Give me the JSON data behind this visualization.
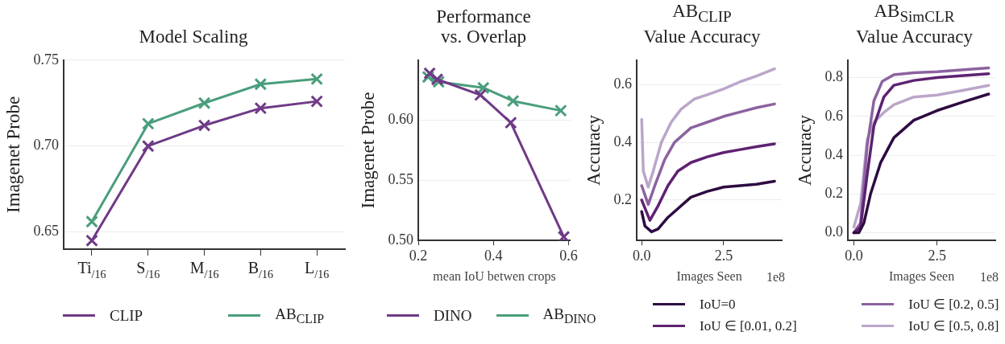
{
  "chart_data": [
    {
      "type": "line",
      "title": "Model Scaling",
      "ylabel": "Imagenet Probe",
      "categories": [
        "Ti$_{/16}$",
        "S$_{/16}$",
        "M$_{/16}$",
        "B$_{/16}$",
        "L$_{/16}$"
      ],
      "ylim": [
        0.64,
        0.75
      ],
      "yticks": [
        {
          "value": 0.65,
          "label": "0.65"
        },
        {
          "value": 0.7,
          "label": "0.70"
        },
        {
          "value": 0.75,
          "label": "0.75"
        }
      ],
      "grid": "y",
      "marker": "cross",
      "legend": "bottom",
      "series": [
        {
          "name": "CLIP",
          "color": "#6f3a86",
          "values": [
            0.645,
            0.7,
            0.712,
            0.722,
            0.726
          ]
        },
        {
          "name": "AB$_{CLIP}$",
          "color": "#4a9e7c",
          "values": [
            0.656,
            0.713,
            0.725,
            0.736,
            0.739
          ]
        }
      ]
    },
    {
      "type": "line",
      "title": "Performance\nvs. Overlap",
      "ylabel": "Imagenet Probe",
      "xlabel": "mean IoU betwen crops",
      "xlim": [
        0.2,
        0.605
      ],
      "xticks": [
        0.2,
        0.4,
        0.6
      ],
      "ylim": [
        0.5,
        0.65
      ],
      "yticks": [
        {
          "value": 0.5,
          "label": "0.50"
        },
        {
          "value": 0.55,
          "label": "0.55"
        },
        {
          "value": 0.6,
          "label": "0.60"
        }
      ],
      "grid": "y",
      "marker": "cross",
      "legend": "bottom",
      "series": [
        {
          "name": "DINO",
          "color": "#6f3a86",
          "x": [
            0.23,
            0.25,
            0.365,
            0.446,
            0.587
          ],
          "values": [
            0.639,
            0.634,
            0.621,
            0.598,
            0.503
          ]
        },
        {
          "name": "AB$_{DINO}$",
          "color": "#4a9e7c",
          "x": [
            0.226,
            0.254,
            0.373,
            0.452,
            0.579
          ],
          "values": [
            0.636,
            0.632,
            0.627,
            0.616,
            0.608
          ]
        }
      ]
    },
    {
      "type": "line",
      "title": "AB$_{CLIP}$\nValue Accuracy",
      "ylabel": "Accuracy",
      "xlabel": "Images Seen",
      "annotations": [
        "1e8"
      ],
      "xlim": [
        -0.15,
        4.27
      ],
      "xticks": [
        {
          "value": 0,
          "label": "0.0"
        },
        2.5
      ],
      "ylim": [
        0.06,
        0.685
      ],
      "yticks": [
        0.2,
        0.4,
        0.6
      ],
      "grid": "y",
      "marker": "none",
      "legend": "bottom",
      "series": [
        {
          "name": "IoU=0",
          "color": "#2e0b42",
          "x": [
            0,
            0.1,
            0.3,
            0.5,
            0.8,
            1.1,
            1.5,
            2.0,
            2.5,
            3.0,
            3.5,
            4.05
          ],
          "values": [
            0.16,
            0.11,
            0.09,
            0.1,
            0.14,
            0.17,
            0.21,
            0.23,
            0.245,
            0.25,
            0.255,
            0.265
          ]
        },
        {
          "name": "IoU ∈ [0.01, 0.2]",
          "color": "#5e2272",
          "x": [
            0,
            0.25,
            0.5,
            0.8,
            1.1,
            1.5,
            2.0,
            2.5,
            3.0,
            3.5,
            4.05
          ],
          "values": [
            0.2,
            0.13,
            0.18,
            0.25,
            0.3,
            0.33,
            0.35,
            0.365,
            0.375,
            0.385,
            0.395
          ]
        },
        {
          "name": "IoU ∈ [0.2, 0.5]",
          "color": "#8c62a0",
          "x": [
            0,
            0.2,
            0.4,
            0.7,
            1.0,
            1.5,
            2.0,
            2.5,
            3.0,
            3.5,
            4.05
          ],
          "values": [
            0.25,
            0.185,
            0.25,
            0.34,
            0.4,
            0.45,
            0.47,
            0.49,
            0.505,
            0.52,
            0.533
          ]
        },
        {
          "name": "IoU ∈ [0.5, 0.8]",
          "color": "#bba6ca",
          "x": [
            0,
            0.05,
            0.2,
            0.35,
            0.6,
            0.9,
            1.2,
            1.6,
            2.0,
            2.5,
            3.0,
            3.5,
            4.05
          ],
          "values": [
            0.48,
            0.3,
            0.245,
            0.3,
            0.4,
            0.47,
            0.515,
            0.55,
            0.565,
            0.585,
            0.61,
            0.63,
            0.655
          ]
        }
      ]
    },
    {
      "type": "line",
      "title": "AB$_{SimCLR}$\nValue Accuracy",
      "ylabel": "Accuracy",
      "xlabel": "Images Seen",
      "annotations": [
        "1e8"
      ],
      "xlim": [
        -0.18,
        4.25
      ],
      "xticks": [
        {
          "value": 0,
          "label": "0.0"
        },
        2.5
      ],
      "ylim": [
        -0.04,
        0.89
      ],
      "yticks": [
        {
          "value": 0,
          "label": "0.0"
        },
        0.2,
        0.4,
        0.6,
        0.8
      ],
      "grid": "y",
      "marker": "none",
      "series": [
        {
          "color": "#2e0b42",
          "x": [
            0,
            0.15,
            0.3,
            0.5,
            0.8,
            1.2,
            1.8,
            2.5,
            3.3,
            4.05
          ],
          "values": [
            0,
            0,
            0.05,
            0.2,
            0.36,
            0.49,
            0.58,
            0.63,
            0.675,
            0.715
          ]
        },
        {
          "color": "#5e2272",
          "x": [
            0,
            0.2,
            0.4,
            0.6,
            0.9,
            1.2,
            1.8,
            2.5,
            3.3,
            4.05
          ],
          "values": [
            0,
            0.03,
            0.3,
            0.55,
            0.7,
            0.76,
            0.785,
            0.8,
            0.81,
            0.82
          ]
        },
        {
          "color": "#8c62a0",
          "x": [
            0,
            0.2,
            0.4,
            0.6,
            0.85,
            1.2,
            1.8,
            2.5,
            3.3,
            4.05
          ],
          "values": [
            0,
            0.05,
            0.45,
            0.68,
            0.78,
            0.815,
            0.825,
            0.83,
            0.84,
            0.85
          ]
        },
        {
          "color": "#bba6ca",
          "x": [
            0,
            0.2,
            0.4,
            0.6,
            0.9,
            1.2,
            1.8,
            2.5,
            3.3,
            4.05
          ],
          "values": [
            0.03,
            0.15,
            0.48,
            0.57,
            0.62,
            0.66,
            0.7,
            0.71,
            0.735,
            0.76
          ]
        }
      ]
    }
  ]
}
